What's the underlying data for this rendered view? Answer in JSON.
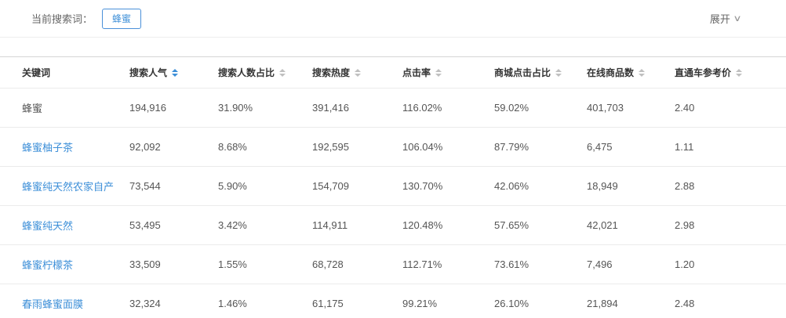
{
  "filter_bar": {
    "label": "当前搜索词：",
    "tag": "蜂蜜",
    "expand_label": "展开",
    "chevron": "∨"
  },
  "colors": {
    "accent": "#3d8fd8",
    "tag_border": "#4a90d9",
    "link": "#3d8fd8",
    "header_text": "#333333",
    "cell_text": "#555555"
  },
  "table": {
    "columns": [
      {
        "key": "keyword",
        "label": "关键词",
        "sortable": false,
        "active": false
      },
      {
        "key": "search-popularity",
        "label": "搜索人气",
        "sortable": true,
        "active": true
      },
      {
        "key": "search-user-ratio",
        "label": "搜索人数占比",
        "sortable": true,
        "active": false
      },
      {
        "key": "search-heat",
        "label": "搜索热度",
        "sortable": true,
        "active": false
      },
      {
        "key": "click-rate",
        "label": "点击率",
        "sortable": true,
        "active": false
      },
      {
        "key": "mall-click-ratio",
        "label": "商城点击占比",
        "sortable": true,
        "active": false
      },
      {
        "key": "online-products",
        "label": "在线商品数",
        "sortable": true,
        "active": false
      },
      {
        "key": "ppc-reference-price",
        "label": "直通车参考价",
        "sortable": true,
        "active": false
      }
    ],
    "rows": [
      {
        "keyword": "蜂蜜",
        "is_link": false,
        "values": [
          "194,916",
          "31.90%",
          "391,416",
          "116.02%",
          "59.02%",
          "401,703",
          "2.40"
        ]
      },
      {
        "keyword": "蜂蜜柚子茶",
        "is_link": true,
        "values": [
          "92,092",
          "8.68%",
          "192,595",
          "106.04%",
          "87.79%",
          "6,475",
          "1.11"
        ]
      },
      {
        "keyword": "蜂蜜纯天然农家自产",
        "is_link": true,
        "values": [
          "73,544",
          "5.90%",
          "154,709",
          "130.70%",
          "42.06%",
          "18,949",
          "2.88"
        ]
      },
      {
        "keyword": "蜂蜜纯天然",
        "is_link": true,
        "values": [
          "53,495",
          "3.42%",
          "114,911",
          "120.48%",
          "57.65%",
          "42,021",
          "2.98"
        ]
      },
      {
        "keyword": "蜂蜜柠檬茶",
        "is_link": true,
        "values": [
          "33,509",
          "1.55%",
          "68,728",
          "112.71%",
          "73.61%",
          "7,496",
          "1.20"
        ]
      },
      {
        "keyword": "春雨蜂蜜面膜",
        "is_link": true,
        "values": [
          "32,324",
          "1.46%",
          "61,175",
          "99.21%",
          "26.10%",
          "21,894",
          "2.48"
        ]
      }
    ]
  }
}
